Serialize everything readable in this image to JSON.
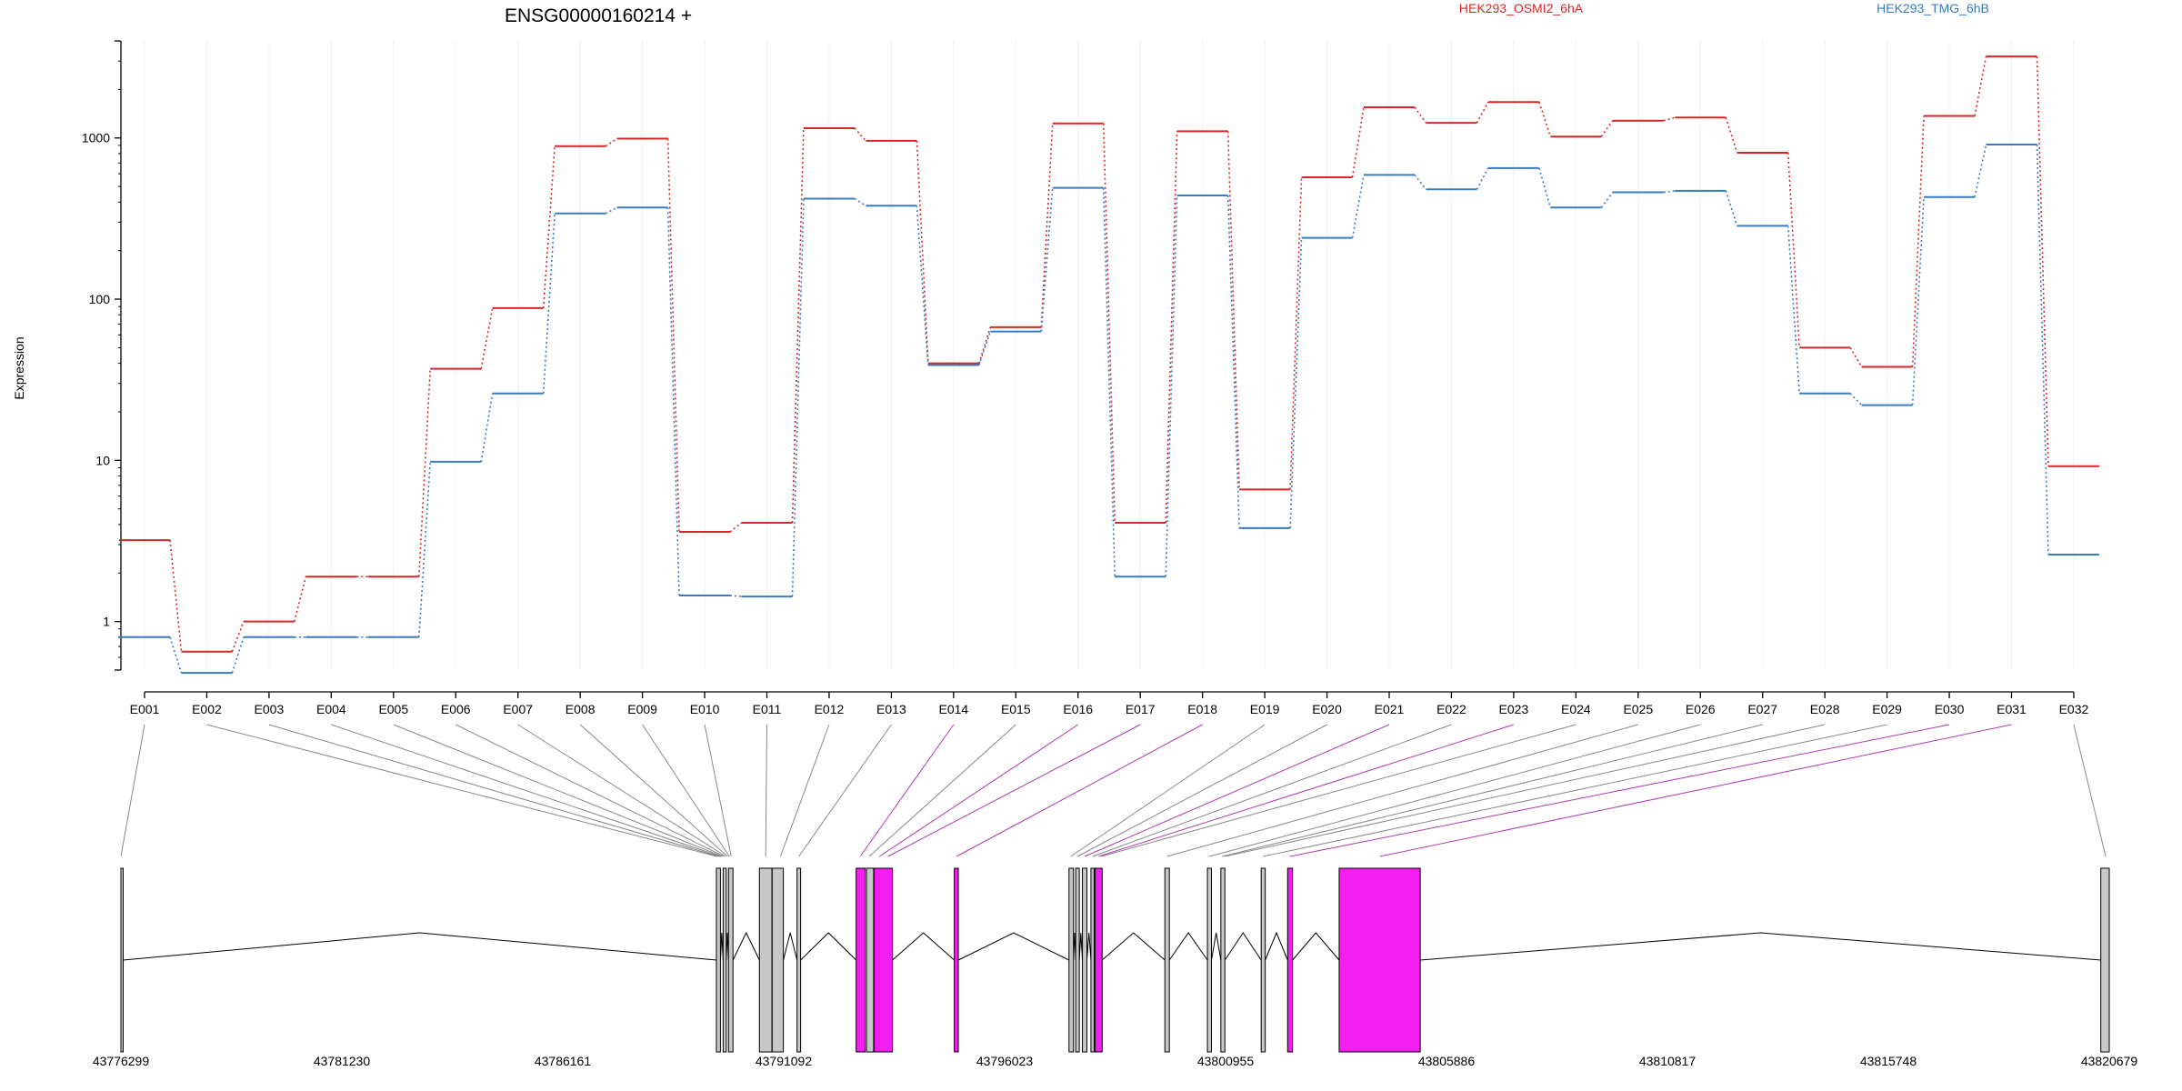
{
  "chart_data": {
    "type": "line",
    "title": "ENSG00000160214 +",
    "ylabel": "Expression",
    "yscale": "log",
    "ylim": [
      0.5,
      4000
    ],
    "y_ticks": [
      1,
      10,
      100,
      1000
    ],
    "y_tick_labels": [
      "1",
      "10",
      "100",
      "1000"
    ],
    "categories": [
      "E001",
      "E002",
      "E003",
      "E004",
      "E005",
      "E006",
      "E007",
      "E008",
      "E009",
      "E010",
      "E011",
      "E012",
      "E013",
      "E014",
      "E015",
      "E016",
      "E017",
      "E018",
      "E019",
      "E020",
      "E021",
      "E022",
      "E023",
      "E024",
      "E025",
      "E026",
      "E027",
      "E028",
      "E029",
      "E030",
      "E031",
      "E032"
    ],
    "series": [
      {
        "name": "HEK293_OSMI2_6hA",
        "color": "#d62728",
        "values": [
          3.2,
          0.65,
          1.0,
          1.9,
          1.9,
          37,
          88,
          890,
          990,
          3.6,
          4.1,
          1150,
          960,
          40,
          67,
          1230,
          4.1,
          1100,
          6.6,
          570,
          1550,
          1240,
          1670,
          1020,
          1280,
          1340,
          810,
          50,
          38,
          1370,
          3200,
          9.2
        ]
      },
      {
        "name": "HEK293_TMG_6hB",
        "color": "#3a7bbf",
        "values": [
          0.8,
          0.48,
          0.8,
          0.8,
          0.8,
          9.8,
          26,
          340,
          370,
          1.45,
          1.43,
          420,
          380,
          39,
          63,
          490,
          1.9,
          440,
          3.8,
          240,
          590,
          480,
          650,
          370,
          460,
          470,
          285,
          26,
          22,
          430,
          910,
          2.6
        ]
      }
    ],
    "legend": "top-right",
    "grid": true,
    "gene_model": {
      "genomic_ticks": [
        "43776299",
        "43781230",
        "43786161",
        "43791092",
        "43796023",
        "43800955",
        "43805886",
        "43810817",
        "43815748",
        "43820679"
      ],
      "genomic_range": [
        43776299,
        43820679
      ],
      "highlight_color": "#f31ff0",
      "exon_color": "#c8c8c8",
      "exons": [
        {
          "start": 43776299,
          "end": 43776350,
          "highlight": false
        },
        {
          "start": 43789590,
          "end": 43789680,
          "highlight": false
        },
        {
          "start": 43789740,
          "end": 43789810,
          "highlight": false
        },
        {
          "start": 43789860,
          "end": 43789960,
          "highlight": false
        },
        {
          "start": 43790550,
          "end": 43790830,
          "highlight": false
        },
        {
          "start": 43790835,
          "end": 43791085,
          "highlight": false
        },
        {
          "start": 43791390,
          "end": 43791470,
          "highlight": false
        },
        {
          "start": 43792710,
          "end": 43792910,
          "highlight": true
        },
        {
          "start": 43792940,
          "end": 43793100,
          "highlight": false
        },
        {
          "start": 43793110,
          "end": 43793520,
          "highlight": true
        },
        {
          "start": 43794900,
          "end": 43794990,
          "highlight": true
        },
        {
          "start": 43797460,
          "end": 43797560,
          "highlight": false
        },
        {
          "start": 43797610,
          "end": 43797690,
          "highlight": false
        },
        {
          "start": 43797760,
          "end": 43797860,
          "highlight": false
        },
        {
          "start": 43797950,
          "end": 43798020,
          "highlight": false
        },
        {
          "start": 43798040,
          "end": 43798200,
          "highlight": true
        },
        {
          "start": 43799600,
          "end": 43799700,
          "highlight": false
        },
        {
          "start": 43800550,
          "end": 43800640,
          "highlight": false
        },
        {
          "start": 43800850,
          "end": 43800940,
          "highlight": false
        },
        {
          "start": 43801750,
          "end": 43801840,
          "highlight": false
        },
        {
          "start": 43802340,
          "end": 43802450,
          "highlight": true
        },
        {
          "start": 43803490,
          "end": 43805300,
          "highlight": true
        },
        {
          "start": 43820490,
          "end": 43820679,
          "highlight": false
        }
      ],
      "exon_links": [
        {
          "exon": 0,
          "pos": 43776299,
          "highlight": false
        },
        {
          "exon": 1,
          "pos": 43789600,
          "highlight": false
        },
        {
          "exon": 2,
          "pos": 43789640,
          "highlight": false
        },
        {
          "exon": 3,
          "pos": 43789680,
          "highlight": false
        },
        {
          "exon": 4,
          "pos": 43789720,
          "highlight": false
        },
        {
          "exon": 5,
          "pos": 43789760,
          "highlight": false
        },
        {
          "exon": 6,
          "pos": 43789800,
          "highlight": false
        },
        {
          "exon": 7,
          "pos": 43789840,
          "highlight": false
        },
        {
          "exon": 8,
          "pos": 43789880,
          "highlight": false
        },
        {
          "exon": 9,
          "pos": 43789920,
          "highlight": false
        },
        {
          "exon": 10,
          "pos": 43790690,
          "highlight": false
        },
        {
          "exon": 11,
          "pos": 43791020,
          "highlight": false
        },
        {
          "exon": 12,
          "pos": 43791430,
          "highlight": false
        },
        {
          "exon": 13,
          "pos": 43792800,
          "highlight": true
        },
        {
          "exon": 14,
          "pos": 43793000,
          "highlight": false
        },
        {
          "exon": 15,
          "pos": 43793230,
          "highlight": true
        },
        {
          "exon": 16,
          "pos": 43793420,
          "highlight": true
        },
        {
          "exon": 17,
          "pos": 43794950,
          "highlight": true
        },
        {
          "exon": 18,
          "pos": 43797500,
          "highlight": false
        },
        {
          "exon": 19,
          "pos": 43797650,
          "highlight": false
        },
        {
          "exon": 20,
          "pos": 43797810,
          "highlight": true
        },
        {
          "exon": 21,
          "pos": 43797990,
          "highlight": false
        },
        {
          "exon": 22,
          "pos": 43798120,
          "highlight": true
        },
        {
          "exon": 23,
          "pos": 43798180,
          "highlight": false
        },
        {
          "exon": 24,
          "pos": 43799650,
          "highlight": false
        },
        {
          "exon": 25,
          "pos": 43800590,
          "highlight": false
        },
        {
          "exon": 26,
          "pos": 43800880,
          "highlight": false
        },
        {
          "exon": 27,
          "pos": 43800940,
          "highlight": false
        },
        {
          "exon": 28,
          "pos": 43801790,
          "highlight": false
        },
        {
          "exon": 29,
          "pos": 43802390,
          "highlight": true
        },
        {
          "exon": 30,
          "pos": 43804400,
          "highlight": true
        },
        {
          "exon": 31,
          "pos": 43820600,
          "highlight": false
        }
      ]
    }
  }
}
